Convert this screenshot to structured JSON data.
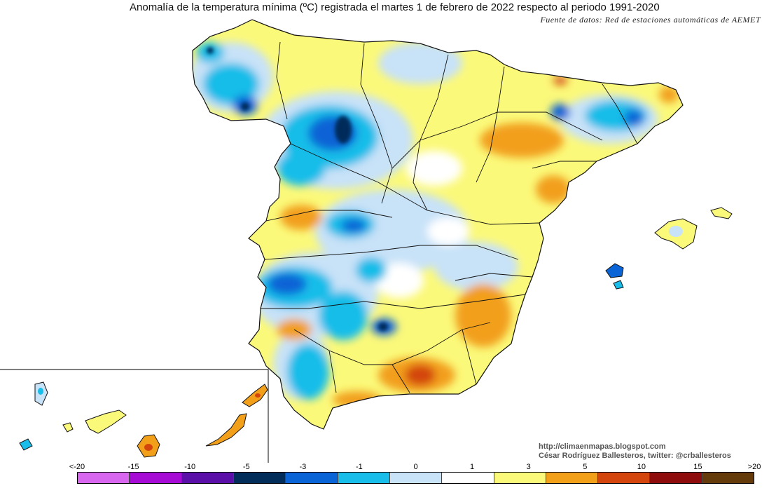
{
  "title": "Anomalía de la temperatura mínima (ºC) registrada el martes 1 de febrero de 2022 respecto al periodo 1991-2020",
  "subtitle": "Fuente de datos: Red de estaciones automáticas de AEMET",
  "credits": {
    "line1": "http://climaenmapas.blogspot.com",
    "line2": "César Rodríguez Ballesteros, twitter: @crballesteros"
  },
  "legend": {
    "ticks": [
      "<-20",
      "-15",
      "-10",
      "-5",
      "-3",
      "-1",
      "0",
      "1",
      "3",
      "5",
      "10",
      "15",
      ">20"
    ],
    "colors": [
      "#d966ee",
      "#a60bd6",
      "#5a0fa8",
      "#022c5a",
      "#0a64d6",
      "#19bde9",
      "#c8e2f8",
      "#ffffff",
      "#fbf97a",
      "#f29f1a",
      "#d3450d",
      "#8e0c0c",
      "#663b0c"
    ]
  }
}
